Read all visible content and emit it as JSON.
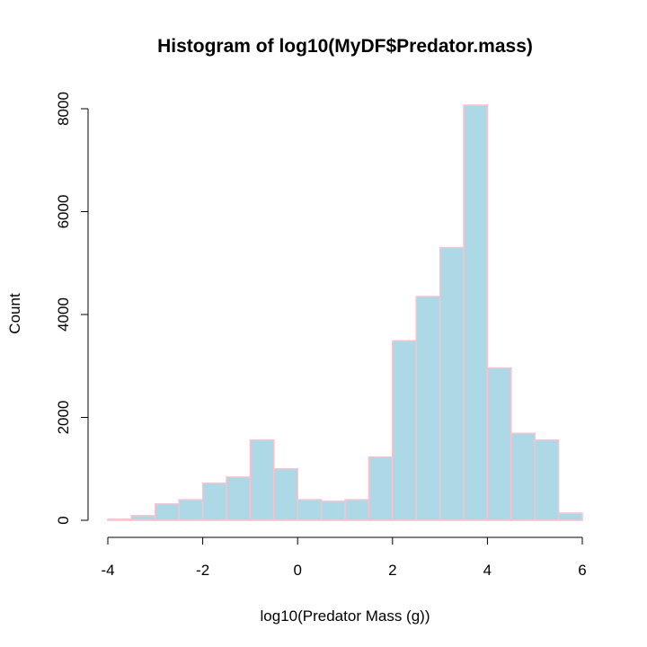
{
  "chart_data": {
    "type": "histogram",
    "title": "Histogram of log10(MyDF$Predator.mass)",
    "xlabel": "log10(Predator Mass (g))",
    "ylabel": "Count",
    "xlim": [
      -4,
      6
    ],
    "ylim": [
      0,
      8000
    ],
    "bin_width": 0.5,
    "bin_starts": [
      -4,
      -3.5,
      -3,
      -2.5,
      -2,
      -1.5,
      -1,
      -0.5,
      0,
      0.5,
      1,
      1.5,
      2,
      2.5,
      3,
      3.5,
      4,
      4.5,
      5,
      5.5
    ],
    "counts": [
      20,
      90,
      320,
      400,
      720,
      840,
      1560,
      1000,
      400,
      370,
      400,
      1230,
      3490,
      4350,
      5300,
      8070,
      2960,
      1690,
      1560,
      140
    ],
    "x_ticks": [
      -4,
      -2,
      0,
      2,
      4,
      6
    ],
    "x_tick_labels": [
      "-4",
      "-2",
      "0",
      "2",
      "4",
      "6"
    ],
    "y_ticks": [
      0,
      2000,
      4000,
      6000,
      8000
    ],
    "y_tick_labels": [
      "0",
      "2000",
      "4000",
      "6000",
      "8000"
    ],
    "fill_color": "#add8e6",
    "border_color": "#ffc0cb",
    "grid": false,
    "legend": "none"
  }
}
